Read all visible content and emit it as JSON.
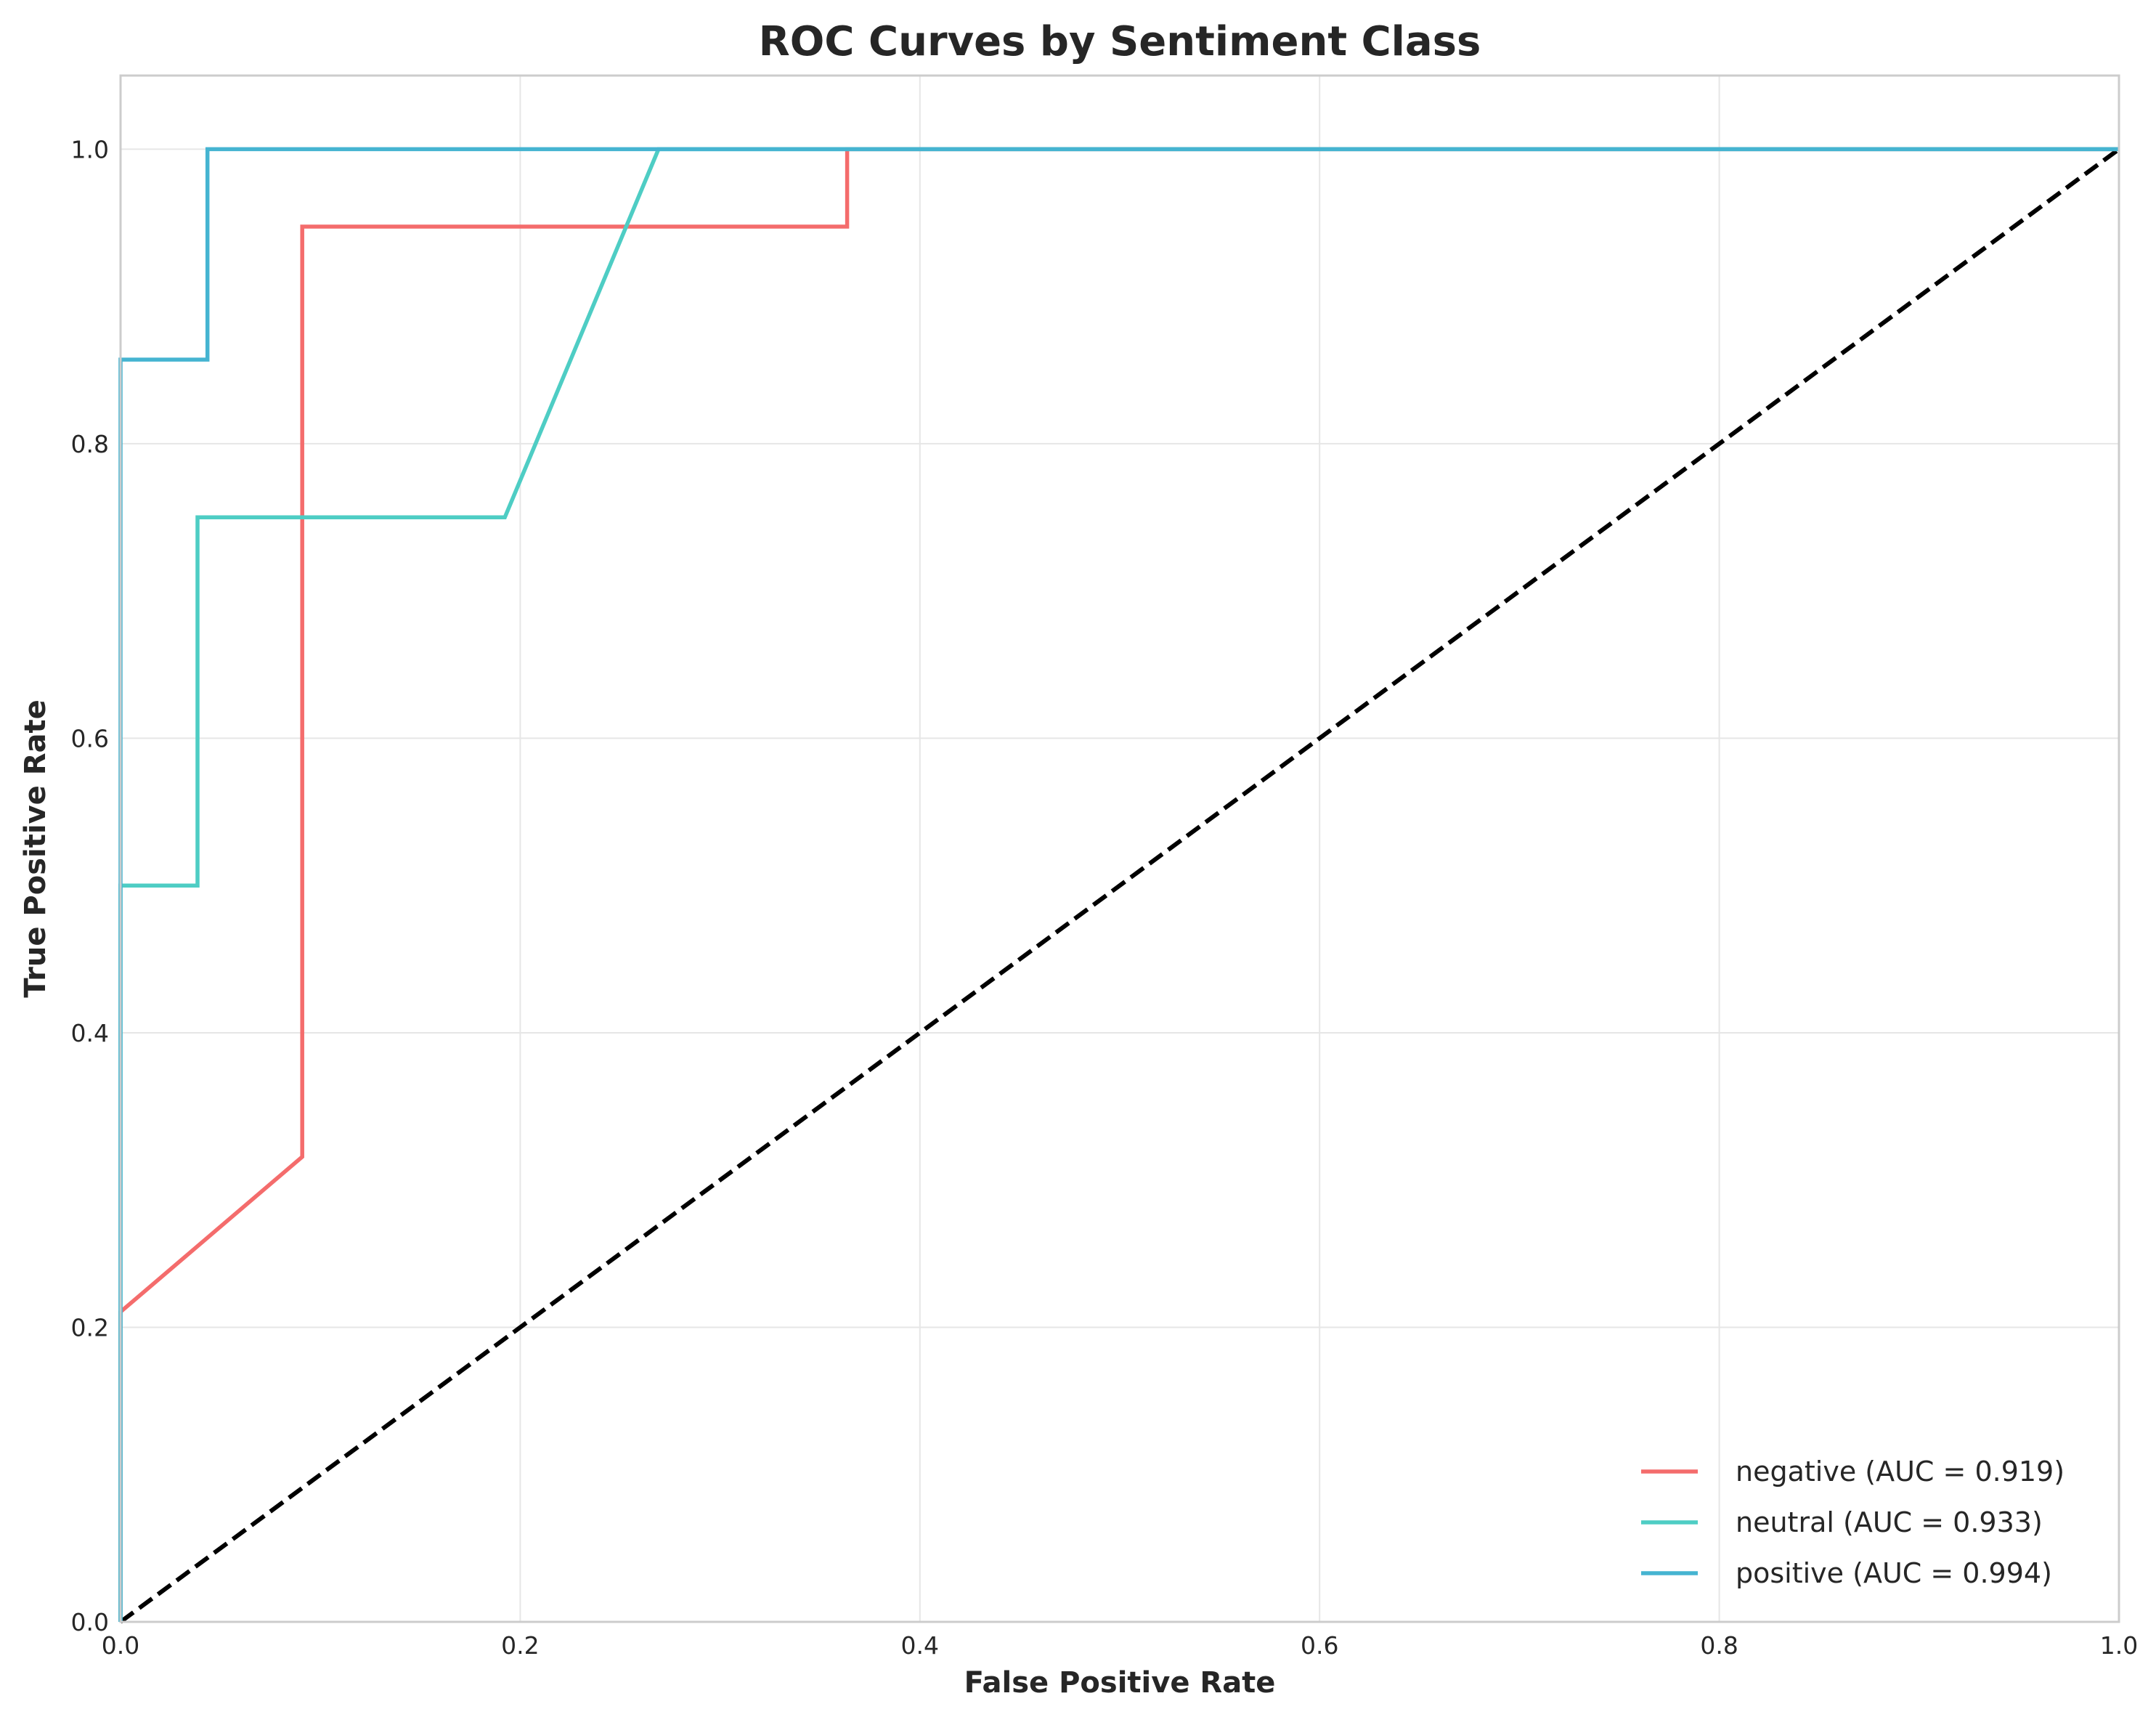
{
  "chart_data": {
    "type": "line",
    "title": "ROC Curves by Sentiment Class",
    "xlabel": "False Positive Rate",
    "ylabel": "True Positive Rate",
    "xlim": [
      0.0,
      1.0
    ],
    "ylim": [
      0.0,
      1.05
    ],
    "xticks": [
      "0.0",
      "0.2",
      "0.4",
      "0.6",
      "0.8",
      "1.0"
    ],
    "yticks": [
      "0.0",
      "0.2",
      "0.4",
      "0.6",
      "0.8",
      "1.0"
    ],
    "grid": true,
    "legend_position": "lower-right",
    "series": [
      {
        "name": "negative (AUC = 0.919)",
        "color": "#f46c6c",
        "x": [
          0.0,
          0.0,
          0.0909,
          0.0909,
          0.3636,
          0.3636,
          1.0
        ],
        "y": [
          0.0,
          0.2105,
          0.3158,
          0.9474,
          0.9474,
          1.0,
          1.0
        ]
      },
      {
        "name": "neutral (AUC = 0.933)",
        "color": "#4ecdc4",
        "x": [
          0.0,
          0.0,
          0.0385,
          0.0385,
          0.1923,
          0.2692,
          1.0
        ],
        "y": [
          0.0,
          0.5,
          0.5,
          0.75,
          0.75,
          1.0,
          1.0
        ]
      },
      {
        "name": "positive (AUC = 0.994)",
        "color": "#45b4d1",
        "x": [
          0.0,
          0.0,
          0.0435,
          0.0435,
          1.0
        ],
        "y": [
          0.0,
          0.8571,
          0.8571,
          1.0,
          1.0
        ]
      }
    ],
    "reference_line": {
      "x": [
        0.0,
        1.0
      ],
      "y": [
        0.0,
        1.0
      ],
      "color": "#000000",
      "style": "dashed"
    }
  }
}
